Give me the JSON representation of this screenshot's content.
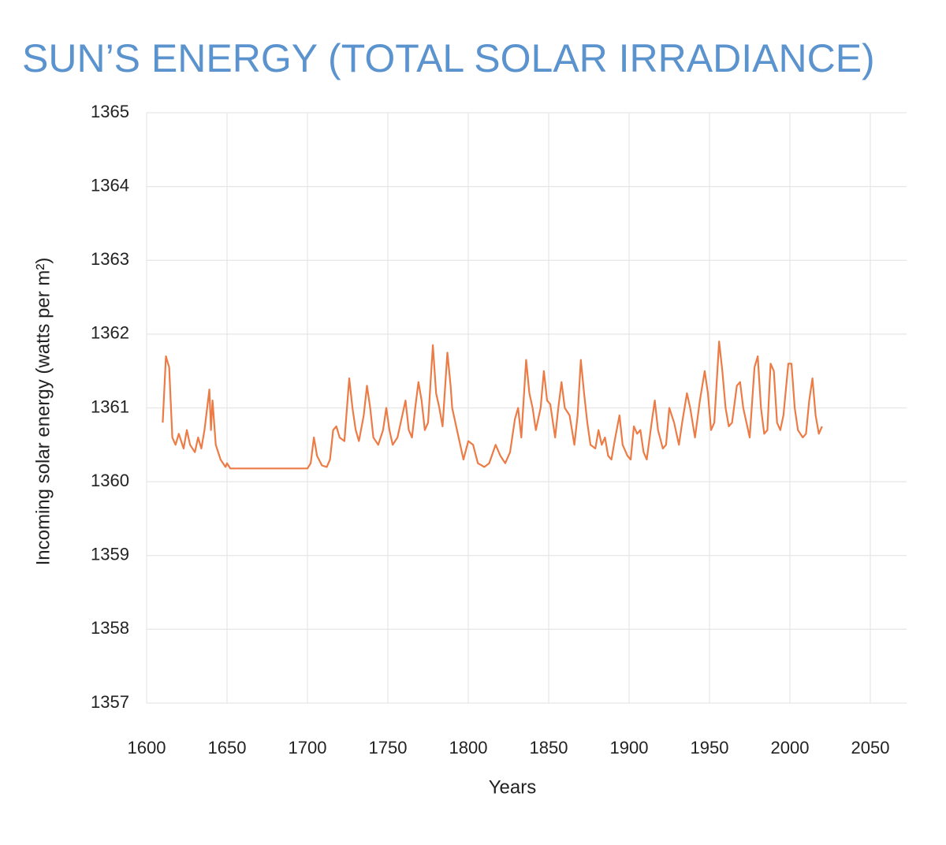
{
  "chart_data": {
    "type": "line",
    "title": "SUN’S ENERGY (TOTAL SOLAR IRRADIANCE)",
    "x_label": "Years",
    "y_label": "Incoming solar energy (watts per m²)",
    "xlim": [
      1600,
      2050
    ],
    "xticks": [
      1600,
      1650,
      1700,
      1750,
      1800,
      1850,
      1900,
      1950,
      2000,
      2050
    ],
    "ylim": [
      1357,
      1365
    ],
    "yticks": [
      1357,
      1358,
      1359,
      1360,
      1361,
      1362,
      1363,
      1364,
      1365
    ],
    "grid": true,
    "series": [
      {
        "name": "Total solar irradiance",
        "color": "#ec7b45",
        "x": [
          1610,
          1612,
          1614,
          1616,
          1618,
          1620,
          1623,
          1625,
          1627,
          1630,
          1632,
          1634,
          1636,
          1639,
          1640,
          1641,
          1643,
          1646,
          1649,
          1650,
          1652,
          1700,
          1702,
          1704,
          1706,
          1709,
          1712,
          1714,
          1716,
          1718,
          1720,
          1723,
          1726,
          1728,
          1730,
          1732,
          1735,
          1737,
          1739,
          1741,
          1744,
          1747,
          1749,
          1751,
          1753,
          1756,
          1758,
          1761,
          1763,
          1765,
          1767,
          1769,
          1771,
          1773,
          1775,
          1778,
          1780,
          1782,
          1784,
          1787,
          1789,
          1790,
          1793,
          1797,
          1800,
          1803,
          1806,
          1810,
          1813,
          1817,
          1820,
          1823,
          1826,
          1829,
          1831,
          1833,
          1836,
          1838,
          1840,
          1842,
          1845,
          1847,
          1849,
          1851,
          1854,
          1856,
          1858,
          1860,
          1863,
          1866,
          1868,
          1870,
          1872,
          1874,
          1876,
          1879,
          1881,
          1883,
          1885,
          1887,
          1889,
          1891,
          1894,
          1896,
          1899,
          1901,
          1903,
          1905,
          1907,
          1909,
          1911,
          1914,
          1916,
          1918,
          1921,
          1923,
          1925,
          1928,
          1931,
          1933,
          1936,
          1938,
          1941,
          1944,
          1947,
          1949,
          1951,
          1953,
          1956,
          1958,
          1960,
          1962,
          1964,
          1967,
          1969,
          1971,
          1973,
          1975,
          1978,
          1980,
          1982,
          1984,
          1986,
          1988,
          1990,
          1992,
          1994,
          1996,
          1999,
          2001,
          2003,
          2005,
          2008,
          2010,
          2012,
          2014,
          2016,
          2018,
          2020
        ],
        "values": [
          1360.8,
          1361.7,
          1361.55,
          1360.6,
          1360.5,
          1360.65,
          1360.45,
          1360.7,
          1360.5,
          1360.4,
          1360.6,
          1360.45,
          1360.7,
          1361.25,
          1360.7,
          1361.1,
          1360.5,
          1360.3,
          1360.2,
          1360.25,
          1360.18,
          1360.18,
          1360.25,
          1360.6,
          1360.35,
          1360.22,
          1360.2,
          1360.3,
          1360.7,
          1360.75,
          1360.6,
          1360.55,
          1361.4,
          1361,
          1360.7,
          1360.55,
          1360.9,
          1361.3,
          1361,
          1360.6,
          1360.5,
          1360.7,
          1361,
          1360.7,
          1360.5,
          1360.6,
          1360.8,
          1361.1,
          1360.7,
          1360.6,
          1361,
          1361.35,
          1361.1,
          1360.7,
          1360.8,
          1361.85,
          1361.2,
          1361,
          1360.75,
          1361.75,
          1361.3,
          1361,
          1360.7,
          1360.3,
          1360.55,
          1360.5,
          1360.25,
          1360.2,
          1360.25,
          1360.5,
          1360.35,
          1360.25,
          1360.4,
          1360.85,
          1361,
          1360.6,
          1361.65,
          1361.2,
          1361,
          1360.7,
          1361,
          1361.5,
          1361.1,
          1361.05,
          1360.6,
          1361,
          1361.35,
          1361,
          1360.9,
          1360.5,
          1360.9,
          1361.65,
          1361.2,
          1360.8,
          1360.5,
          1360.45,
          1360.7,
          1360.5,
          1360.6,
          1360.35,
          1360.3,
          1360.55,
          1360.9,
          1360.5,
          1360.35,
          1360.3,
          1360.75,
          1360.65,
          1360.7,
          1360.4,
          1360.3,
          1360.8,
          1361.1,
          1360.7,
          1360.45,
          1360.5,
          1361,
          1360.8,
          1360.5,
          1360.8,
          1361.2,
          1361,
          1360.6,
          1361.1,
          1361.5,
          1361.2,
          1360.7,
          1360.8,
          1361.9,
          1361.5,
          1361,
          1360.75,
          1360.8,
          1361.3,
          1361.35,
          1361,
          1360.8,
          1360.6,
          1361.55,
          1361.7,
          1361,
          1360.65,
          1360.7,
          1361.6,
          1361.5,
          1360.8,
          1360.7,
          1360.9,
          1361.6,
          1361.6,
          1361,
          1360.7,
          1360.6,
          1360.65,
          1361.1,
          1361.4,
          1360.9,
          1360.65,
          1360.75
        ]
      }
    ]
  }
}
